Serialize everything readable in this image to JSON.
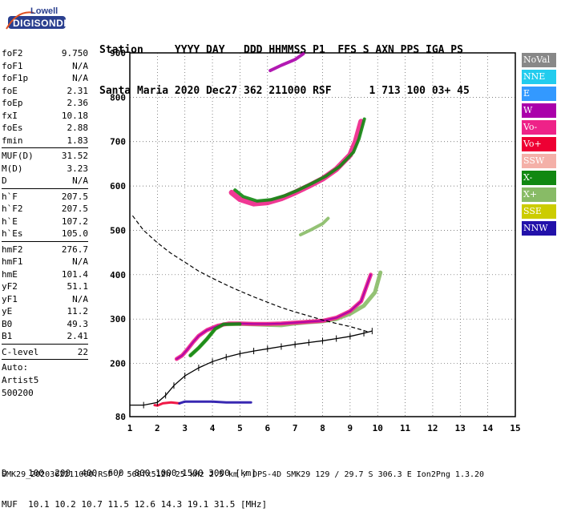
{
  "logo": {
    "line1": "Lowell",
    "line2": "DIGISONDE"
  },
  "header": {
    "line1": "Station     YYYY DAY   DDD HHMMSS P1  FFS S AXN PPS IGA PS",
    "line2": "Santa Maria 2020 Dec27 362 211000 RSF      1 713 100 03+ 45"
  },
  "params": {
    "group1": [
      {
        "name": "foF2",
        "value": "9.750"
      },
      {
        "name": "foF1",
        "value": "N/A"
      },
      {
        "name": "foF1p",
        "value": "N/A"
      },
      {
        "name": "foE",
        "value": "2.31"
      },
      {
        "name": "foEp",
        "value": "2.36"
      },
      {
        "name": "fxI",
        "value": "10.18"
      },
      {
        "name": "foEs",
        "value": "2.88"
      },
      {
        "name": "fmin",
        "value": "1.83"
      }
    ],
    "group2": [
      {
        "name": "MUF(D)",
        "value": "31.52"
      },
      {
        "name": "M(D)",
        "value": "3.23"
      },
      {
        "name": "D",
        "value": "N/A"
      }
    ],
    "group3": [
      {
        "name": "h`F",
        "value": "207.5"
      },
      {
        "name": "h`F2",
        "value": "207.5"
      },
      {
        "name": "h`E",
        "value": "107.2"
      },
      {
        "name": "h`Es",
        "value": "105.0"
      }
    ],
    "group4": [
      {
        "name": "hmF2",
        "value": "276.7"
      },
      {
        "name": "hmF1",
        "value": "N/A"
      },
      {
        "name": "hmE",
        "value": "101.4"
      },
      {
        "name": "yF2",
        "value": "51.1"
      },
      {
        "name": "yF1",
        "value": "N/A"
      },
      {
        "name": "yE",
        "value": "11.2"
      },
      {
        "name": "B0",
        "value": "49.3"
      },
      {
        "name": "B1",
        "value": "2.41"
      }
    ],
    "group5": [
      {
        "name": "C-level",
        "value": "22"
      }
    ],
    "auto": [
      "Auto:",
      "Artist5",
      "500200"
    ]
  },
  "legend": [
    {
      "label": "NoVal",
      "color": "#888888"
    },
    {
      "label": "NNE",
      "color": "#22ccee"
    },
    {
      "label": "E",
      "color": "#3399ff"
    },
    {
      "label": "W",
      "color": "#aa00aa"
    },
    {
      "label": "Vo-",
      "color": "#ee2288"
    },
    {
      "label": "Vo+",
      "color": "#ee0033"
    },
    {
      "label": "SSW",
      "color": "#f4b0a8"
    },
    {
      "label": "X-",
      "color": "#118811"
    },
    {
      "label": "X+",
      "color": "#88bb66"
    },
    {
      "label": "SSE",
      "color": "#cccc00"
    },
    {
      "label": "NNW",
      "color": "#2211aa"
    }
  ],
  "bottom": {
    "line1": "D    100  200  400  600  800 1000 1500 3000 [km]",
    "line2": "MUF  10.1 10.2 10.7 11.5 12.6 14.3 19.1 31.5 [MHz]"
  },
  "footer": "SMK29_2020362211000.RSF / 560fx512h 25 kHz 2.5 km / DPS-4D SMK29 129 / 29.7 S 306.3 E Ion2Png 1.3.20",
  "chart_data": {
    "type": "scatter",
    "x_ticks": [
      "1",
      "2",
      "3",
      "4",
      "5",
      "6",
      "7",
      "8",
      "9",
      "10",
      "11",
      "12",
      "13",
      "14",
      "15"
    ],
    "y_ticks": [
      "80",
      "200",
      "300",
      "400",
      "500",
      "600",
      "700",
      "800",
      "900"
    ],
    "xlim": [
      1,
      15
    ],
    "ylim": [
      80,
      900
    ],
    "profile": [
      [
        1.0,
        106
      ],
      [
        1.5,
        106
      ],
      [
        2.0,
        112
      ],
      [
        2.3,
        128
      ],
      [
        2.6,
        150
      ],
      [
        3.0,
        172
      ],
      [
        3.5,
        190
      ],
      [
        4.0,
        204
      ],
      [
        4.5,
        214
      ],
      [
        5.0,
        222
      ],
      [
        5.5,
        228
      ],
      [
        6.0,
        233
      ],
      [
        6.5,
        238
      ],
      [
        7.0,
        243
      ],
      [
        7.5,
        247
      ],
      [
        8.0,
        251
      ],
      [
        8.5,
        256
      ],
      [
        9.0,
        261
      ],
      [
        9.5,
        268
      ],
      [
        9.8,
        273
      ]
    ],
    "model_trace": [
      [
        1.1,
        533
      ],
      [
        1.5,
        500
      ],
      [
        2.0,
        472
      ],
      [
        2.5,
        448
      ],
      [
        3.0,
        428
      ],
      [
        3.5,
        408
      ],
      [
        4.0,
        392
      ],
      [
        4.5,
        377
      ],
      [
        5.0,
        363
      ],
      [
        5.5,
        350
      ],
      [
        6.0,
        338
      ],
      [
        6.5,
        326
      ],
      [
        7.0,
        316
      ],
      [
        7.5,
        307
      ],
      [
        8.0,
        298
      ],
      [
        8.5,
        290
      ],
      [
        9.0,
        283
      ],
      [
        9.4,
        276
      ],
      [
        9.7,
        270
      ]
    ],
    "o_trace": [
      [
        2.7,
        210
      ],
      [
        2.9,
        218
      ],
      [
        3.1,
        232
      ],
      [
        3.3,
        248
      ],
      [
        3.5,
        262
      ],
      [
        3.8,
        275
      ],
      [
        4.2,
        285
      ],
      [
        4.6,
        290
      ],
      [
        5.0,
        290
      ],
      [
        5.5,
        289
      ],
      [
        6.0,
        289
      ],
      [
        6.5,
        290
      ],
      [
        7.0,
        292
      ],
      [
        7.5,
        294
      ],
      [
        8.0,
        296
      ],
      [
        8.5,
        303
      ],
      [
        9.0,
        318
      ],
      [
        9.4,
        340
      ],
      [
        9.75,
        400
      ]
    ],
    "x_trace": [
      [
        3.2,
        218
      ],
      [
        3.5,
        235
      ],
      [
        3.8,
        255
      ],
      [
        4.1,
        278
      ],
      [
        4.4,
        288
      ],
      [
        5.0,
        289
      ],
      [
        5.5,
        288
      ],
      [
        6.0,
        287
      ],
      [
        6.5,
        286
      ],
      [
        7.0,
        290
      ],
      [
        7.5,
        293
      ],
      [
        8.0,
        295
      ],
      [
        8.5,
        300
      ],
      [
        9.0,
        312
      ],
      [
        9.5,
        330
      ],
      [
        9.9,
        360
      ],
      [
        10.1,
        405
      ]
    ],
    "multihop_trace": [
      [
        4.7,
        585
      ],
      [
        5.0,
        570
      ],
      [
        5.5,
        560
      ],
      [
        6.0,
        563
      ],
      [
        6.5,
        572
      ],
      [
        7.0,
        585
      ],
      [
        7.5,
        600
      ],
      [
        8.0,
        616
      ],
      [
        8.5,
        638
      ],
      [
        9.0,
        670
      ],
      [
        9.2,
        700
      ],
      [
        9.4,
        745
      ]
    ],
    "sporadic_e": [
      [
        1.9,
        106
      ],
      [
        2.0,
        105
      ],
      [
        2.2,
        110
      ],
      [
        2.5,
        112
      ],
      [
        2.8,
        110
      ],
      [
        3.0,
        114
      ],
      [
        3.5,
        114
      ],
      [
        4.0,
        114
      ],
      [
        4.5,
        112
      ],
      [
        5.0,
        112
      ],
      [
        5.4,
        112
      ]
    ],
    "upper_fragment": [
      [
        6.1,
        860
      ],
      [
        6.5,
        872
      ],
      [
        7.0,
        885
      ],
      [
        7.3,
        898
      ]
    ],
    "mid_fragment": [
      [
        7.2,
        490
      ],
      [
        7.6,
        502
      ],
      [
        8.0,
        515
      ],
      [
        8.2,
        527
      ]
    ]
  }
}
